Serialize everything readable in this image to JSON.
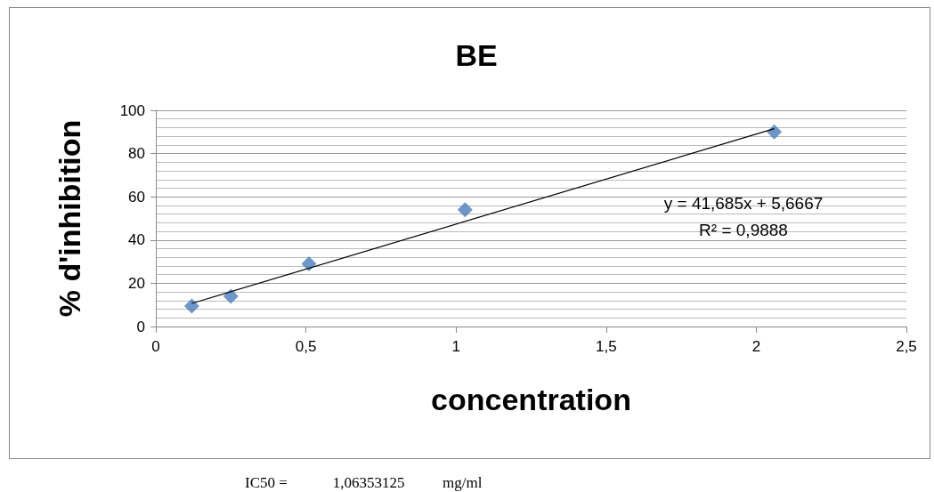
{
  "chart_data": {
    "type": "scatter",
    "title": "BE",
    "xlabel": "concentration",
    "ylabel": "% d'inhibition",
    "xlim": [
      0,
      2.5
    ],
    "xticks": [
      0,
      {
        "value": 0.5,
        "label": "0,5"
      },
      1,
      {
        "value": 1.5,
        "label": "1,5"
      },
      2,
      {
        "value": 2.5,
        "label": "2,5"
      }
    ],
    "ylim": [
      0,
      100
    ],
    "yticks": [
      0,
      20,
      40,
      60,
      80,
      100
    ],
    "grid": "y",
    "marker": "diamond",
    "series": [
      {
        "color": "#4a7ebb",
        "x": [
          0.12,
          0.25,
          0.51,
          1.03,
          2.06
        ],
        "values": [
          9.5,
          14,
          29,
          54,
          90
        ]
      },
      {
        "type": "line",
        "color": "#000000",
        "marker": "none",
        "x": [
          0.12,
          2.06
        ],
        "values": [
          10.7,
          91.5
        ]
      }
    ],
    "annotations": [
      "y = 41,685x + 5,6667",
      "R² = 0,9888",
      "IC50 =            1,06353125          mg/ml"
    ]
  }
}
